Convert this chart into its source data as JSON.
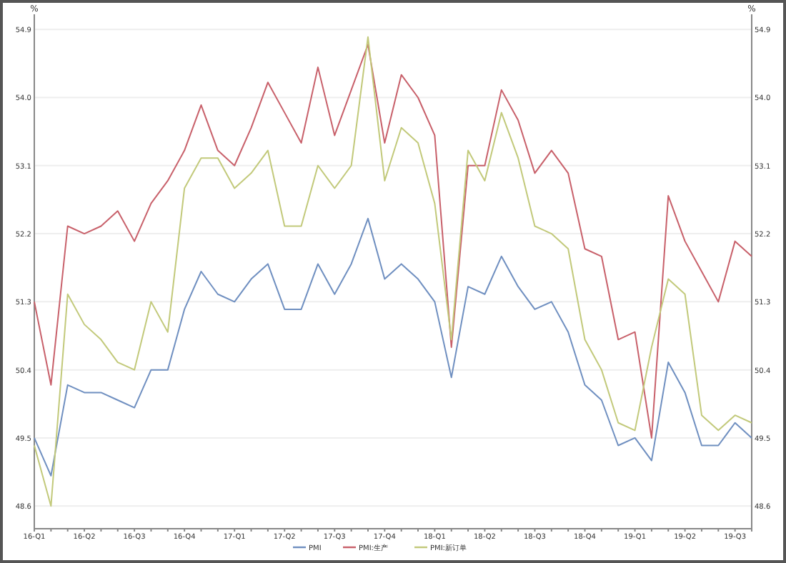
{
  "chart_data": {
    "type": "line",
    "ylabel": "%",
    "y2label": "%",
    "categories": [
      "16-Q1",
      null,
      null,
      "16-Q2",
      null,
      null,
      "16-Q3",
      null,
      null,
      "16-Q4",
      null,
      null,
      "17-Q1",
      null,
      null,
      "17-Q2",
      null,
      null,
      "17-Q3",
      null,
      null,
      "17-Q4",
      null,
      null,
      "18-Q1",
      null,
      null,
      "18-Q2",
      null,
      null,
      "18-Q3",
      null,
      null,
      "18-Q4",
      null,
      null,
      "19-Q1",
      null,
      null,
      "19-Q2",
      null,
      null,
      "19-Q3",
      null
    ],
    "series": [
      {
        "name": "PMI",
        "color": "#6f8fc0",
        "values": [
          49.5,
          49.0,
          50.2,
          50.1,
          50.1,
          50.0,
          49.9,
          50.4,
          50.4,
          51.2,
          51.7,
          51.4,
          51.3,
          51.6,
          51.8,
          51.2,
          51.2,
          51.8,
          51.4,
          51.8,
          52.4,
          51.6,
          51.8,
          51.6,
          51.3,
          50.3,
          51.5,
          51.4,
          51.9,
          51.5,
          51.2,
          51.3,
          50.9,
          50.2,
          50.0,
          49.4,
          49.5,
          49.2,
          50.5,
          50.1,
          49.4,
          49.4,
          49.7,
          49.5
        ]
      },
      {
        "name": "PMI:生产",
        "color": "#c8606a",
        "values": [
          51.3,
          50.2,
          52.3,
          52.2,
          52.3,
          52.5,
          52.1,
          52.6,
          52.9,
          53.3,
          53.9,
          53.3,
          53.1,
          53.6,
          54.2,
          53.8,
          53.4,
          54.4,
          53.5,
          54.1,
          54.7,
          53.4,
          54.3,
          54.0,
          53.5,
          50.7,
          53.1,
          53.1,
          54.1,
          53.7,
          53.0,
          53.3,
          53.0,
          52.0,
          51.9,
          50.8,
          50.9,
          49.5,
          52.7,
          52.1,
          51.7,
          51.3,
          52.1,
          51.9
        ]
      },
      {
        "name": "PMI:新订单",
        "color": "#c2c97a",
        "values": [
          49.4,
          48.6,
          51.4,
          51.0,
          50.8,
          50.5,
          50.4,
          51.3,
          50.9,
          52.8,
          53.2,
          53.2,
          52.8,
          53.0,
          53.3,
          52.3,
          52.3,
          53.1,
          52.8,
          53.1,
          54.8,
          52.9,
          53.6,
          53.4,
          52.6,
          50.8,
          53.3,
          52.9,
          53.8,
          53.2,
          52.3,
          52.2,
          52.0,
          50.8,
          50.4,
          49.7,
          49.6,
          50.7,
          51.6,
          51.4,
          49.8,
          49.6,
          49.8,
          49.7
        ]
      }
    ],
    "ylim": [
      48.3,
      55.1
    ],
    "yticks": [
      48.6,
      49.5,
      50.4,
      51.3,
      52.2,
      53.1,
      {
        "value": 54,
        "label": "54.0"
      },
      54.9
    ],
    "y2lim": [
      48.3,
      55.1
    ],
    "y2ticks": [
      48.6,
      49.5,
      50.4,
      51.3,
      52.2,
      53.1,
      {
        "value": 54,
        "label": "54.0"
      },
      54.9
    ],
    "grid": "y",
    "legend": "bottom",
    "marker": "none",
    "line_style": "solid"
  }
}
